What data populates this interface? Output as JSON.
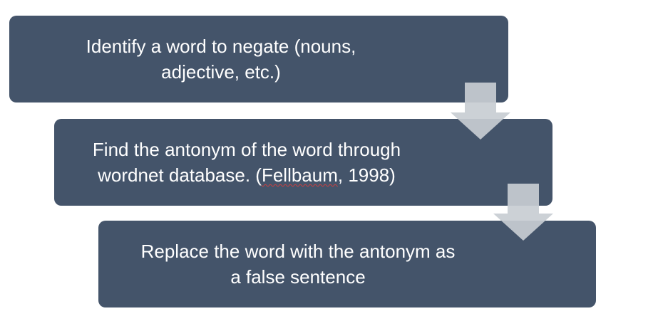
{
  "steps": [
    {
      "line1": "Identify a word to negate (nouns,",
      "line2": "adjective, etc.)"
    },
    {
      "line1": "Find the antonym of the word through",
      "line2_pre": "wordnet database. (",
      "line2_mark": "Fellbaum",
      "line2_post": ", 1998)"
    },
    {
      "line1": "Replace the word with the antonym as",
      "line2": "a false sentence"
    }
  ],
  "colors": {
    "box": "#44546a",
    "arrow": "#c8cdd2",
    "text": "#ffffff",
    "spellcheck": "#d04040"
  }
}
